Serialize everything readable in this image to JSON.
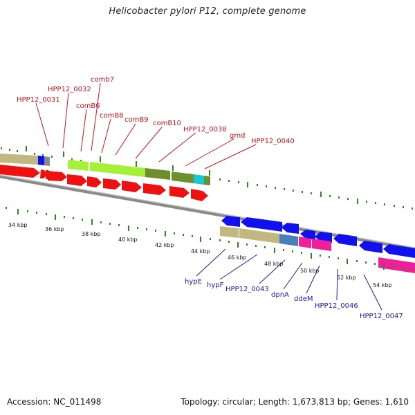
{
  "title": "Helicobacter pylori P12, complete genome",
  "footer": {
    "accession": "Accession: NC_011498",
    "summary": "Topology: circular; Length: 1,673,813 bp; Genes: 1,610"
  },
  "colors": {
    "red": "#ee1111",
    "blue": "#1111ee",
    "lime": "#a6ef3a",
    "olive": "#6e8f2e",
    "tan": "#c2b77e",
    "cyan": "#16c8d4",
    "pink": "#ee1f98",
    "steel": "#4a7fb8",
    "navy": "#1f21a8",
    "gray": "#8a8a8a",
    "tick": "#2a8a1e",
    "label_red": "#c8141e",
    "label_blue": "#1a1aa8"
  },
  "kbp_labels": [
    "34 kbp",
    "36 kbp",
    "38 kbp",
    "40 kbp",
    "42 kbp",
    "44 kbp",
    "46 kbp",
    "48 kbp",
    "50 kbp",
    "52 kbp",
    "54 kbp"
  ],
  "upper_genes": [
    {
      "label": "HPP12_0031"
    },
    {
      "label": "HPP12_0032"
    },
    {
      "label": "comB6"
    },
    {
      "label": "comb7"
    },
    {
      "label": "comB8"
    },
    {
      "label": "comB9"
    },
    {
      "label": "comB10"
    },
    {
      "label": "HPP12_0038"
    },
    {
      "label": "gmd"
    },
    {
      "label": "HPP12_0040"
    }
  ],
  "lower_genes": [
    {
      "label": "hypE"
    },
    {
      "label": "hypF"
    },
    {
      "label": "HPP12_0043"
    },
    {
      "label": "dpnA"
    },
    {
      "label": "ddeM"
    },
    {
      "label": "HPP12_0046"
    },
    {
      "label": "HPP12_0047"
    }
  ]
}
